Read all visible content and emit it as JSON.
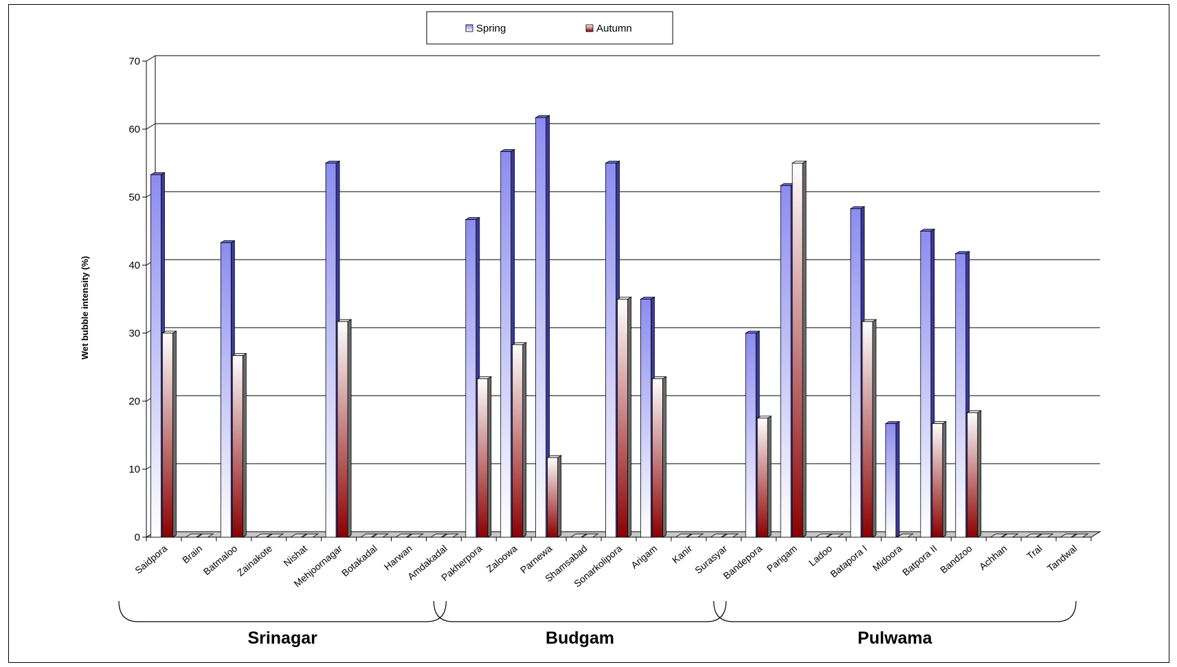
{
  "chart_data": {
    "type": "bar",
    "ylabel": "Wet bubble intensity (%)",
    "ylim": [
      0,
      70
    ],
    "yticks": [
      0,
      10,
      20,
      30,
      40,
      50,
      60,
      70
    ],
    "grid": true,
    "legend_position": "top-center",
    "categories": [
      "Saidpora",
      "Brain",
      "Batmaloo",
      "Zainakote",
      "Nishat",
      "Mehjoornagar",
      "Botakadal",
      "Harwan",
      "Amdakadal",
      "Pakherpora",
      "Zaloowa",
      "Parnewa",
      "Shamsabad",
      "Sonarkolipora",
      "Arigam",
      "Kanir",
      "Surasyar",
      "Bandepora",
      "Parigam",
      "Ladoo",
      "Batapora I",
      "Midoora",
      "Batpora II",
      "Bandzoo",
      "Achhan",
      "Tral",
      "Tandwal"
    ],
    "series": [
      {
        "name": "Spring",
        "color": "#8c8cf0",
        "values": [
          53.3,
          0,
          43.3,
          0,
          0,
          55,
          0,
          0,
          0,
          46.7,
          56.7,
          61.7,
          0,
          55,
          35,
          0,
          0,
          30,
          51.7,
          0,
          48.3,
          16.7,
          45,
          41.7,
          0,
          0,
          0
        ]
      },
      {
        "name": "Autumn",
        "color": "#8b0000",
        "values": [
          30,
          0,
          26.7,
          0,
          0,
          31.7,
          0,
          0,
          0,
          23.3,
          28.3,
          11.7,
          0,
          35,
          23.3,
          0,
          0,
          17.5,
          55,
          0,
          31.7,
          0,
          16.7,
          18.3,
          0,
          0,
          0
        ]
      }
    ],
    "groups": [
      {
        "name": "Srinagar",
        "from": 0,
        "to": 8
      },
      {
        "name": "Budgam",
        "from": 9,
        "to": 16
      },
      {
        "name": "Pulwama",
        "from": 17,
        "to": 26
      }
    ]
  }
}
